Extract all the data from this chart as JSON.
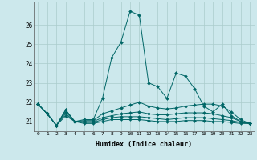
{
  "xlabel": "Humidex (Indice chaleur)",
  "background_color": "#cce8ec",
  "grid_color": "#aacccc",
  "line_color": "#006666",
  "x_values": [
    0,
    1,
    2,
    3,
    4,
    5,
    6,
    7,
    8,
    9,
    10,
    11,
    12,
    13,
    14,
    15,
    16,
    17,
    18,
    19,
    20,
    21,
    22,
    23
  ],
  "series": [
    [
      21.9,
      21.4,
      20.8,
      21.6,
      21.0,
      21.1,
      21.1,
      22.2,
      24.3,
      25.1,
      26.7,
      26.5,
      23.0,
      22.8,
      22.2,
      23.5,
      23.35,
      22.7,
      21.8,
      21.5,
      21.9,
      21.3,
      21.0,
      20.9
    ],
    [
      21.9,
      21.4,
      20.8,
      21.6,
      21.0,
      21.05,
      21.05,
      21.4,
      21.55,
      21.7,
      21.85,
      22.0,
      21.8,
      21.7,
      21.65,
      21.7,
      21.8,
      21.85,
      21.9,
      21.9,
      21.8,
      21.5,
      21.1,
      20.9
    ],
    [
      21.9,
      21.4,
      20.8,
      21.5,
      21.0,
      21.0,
      21.0,
      21.2,
      21.3,
      21.4,
      21.45,
      21.5,
      21.4,
      21.35,
      21.35,
      21.4,
      21.45,
      21.45,
      21.45,
      21.4,
      21.3,
      21.2,
      21.0,
      20.9
    ],
    [
      21.9,
      21.4,
      20.8,
      21.4,
      21.0,
      20.95,
      20.95,
      21.1,
      21.2,
      21.25,
      21.25,
      21.25,
      21.2,
      21.15,
      21.1,
      21.15,
      21.2,
      21.2,
      21.2,
      21.15,
      21.1,
      21.05,
      20.95,
      20.9
    ],
    [
      21.9,
      21.4,
      20.8,
      21.3,
      21.0,
      20.9,
      20.9,
      21.0,
      21.1,
      21.1,
      21.1,
      21.1,
      21.05,
      21.0,
      21.0,
      21.0,
      21.05,
      21.05,
      21.05,
      21.0,
      21.0,
      20.95,
      20.9,
      20.9
    ]
  ],
  "ylim": [
    20.5,
    27.2
  ],
  "yticks": [
    21,
    22,
    23,
    24,
    25,
    26
  ],
  "xlim": [
    -0.5,
    23.5
  ],
  "markersize": 2.0,
  "linewidth": 0.7
}
